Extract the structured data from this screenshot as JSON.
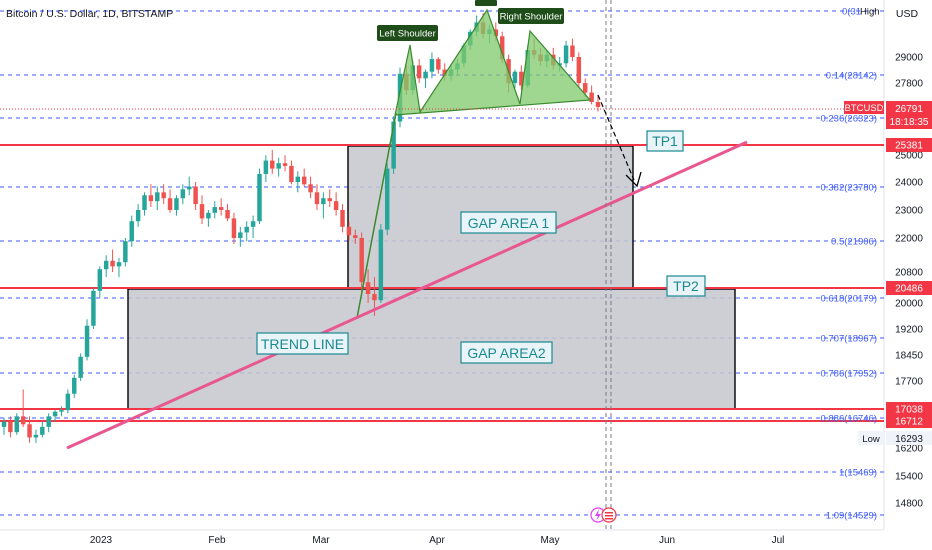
{
  "header": {
    "title": "Bitcoin / U.S. Dollar, 1D, BITSTAMP",
    "currency": "USD"
  },
  "colors": {
    "fib": "#3d5afe",
    "red_line": "#f23645",
    "trend": "#e8578f",
    "pattern_fill": "#7fc96b",
    "pattern_stroke": "#3a8a2e",
    "gap_fill": "#c6c7ce",
    "label_teal": "#1b8a91",
    "candle_up": "#26a69a",
    "candle_down": "#ef5350"
  },
  "chart_data": {
    "type": "candlestick",
    "symbol": "BTCUSD",
    "ylim": [
      14000,
      32000
    ],
    "price_axis_ticks": [
      {
        "value": 14800,
        "label": "14800"
      },
      {
        "value": 15400,
        "label": "15400"
      },
      {
        "value": 16200,
        "label": "16200"
      },
      {
        "value": 17700,
        "label": "17700"
      },
      {
        "value": 18450,
        "label": "18450"
      },
      {
        "value": 19200,
        "label": "19200"
      },
      {
        "value": 20000,
        "label": "20000"
      },
      {
        "value": 20800,
        "label": "20800"
      },
      {
        "value": 22000,
        "label": "22000"
      },
      {
        "value": 23000,
        "label": "23000"
      },
      {
        "value": 24000,
        "label": "24000"
      },
      {
        "value": 25000,
        "label": "25000"
      },
      {
        "value": 29000,
        "label": "29000"
      },
      {
        "value": 27800,
        "label": "27800"
      }
    ],
    "time_labels": [
      "2023",
      "Feb",
      "Mar",
      "Apr",
      "May",
      "Jun",
      "Jul"
    ],
    "fib_levels": [
      {
        "value": 31000,
        "label": "0(31",
        "extra": "High"
      },
      {
        "value": 28142,
        "label": "0.14(28142)"
      },
      {
        "value": 26323,
        "label": "0.236(26323)"
      },
      {
        "value": 23780,
        "label": "0.382(23780)"
      },
      {
        "value": 21906,
        "label": "0.5(21906)"
      },
      {
        "value": 20179,
        "label": "0.618(20179)"
      },
      {
        "value": 18967,
        "label": "0.707(18967)"
      },
      {
        "value": 17952,
        "label": "0.786(17952)"
      },
      {
        "value": 16746,
        "label": "0.886(16746)"
      },
      {
        "value": 15469,
        "label": "1(15469)"
      },
      {
        "value": 14529,
        "label": "1.09(14529)"
      }
    ],
    "horizontal_levels": [
      {
        "value": 25381,
        "label": "25381"
      },
      {
        "value": 20486,
        "label": "20486"
      },
      {
        "value": 17038,
        "label": "17038"
      },
      {
        "value": 16712,
        "label": "16712"
      }
    ],
    "current_price": {
      "symbol": "BTCUSD",
      "value": "26791",
      "countdown": "18:18:35"
    },
    "low_marker": {
      "label": "Low",
      "value": "16293"
    },
    "annotations": {
      "left_shoulder": "Left Shoulder",
      "right_shoulder": "Right Shoulder",
      "tp1": "TP1",
      "tp2": "TP2",
      "gap_area_1": "GAP AREA 1",
      "gap_area_2": "GAP AREA2",
      "trend_line": "TREND LINE"
    },
    "candles_ohlc_approx": [
      [
        16600,
        16750,
        16450,
        16700
      ],
      [
        16700,
        16800,
        16400,
        16500
      ],
      [
        16500,
        16900,
        16450,
        16800
      ],
      [
        16800,
        17500,
        16600,
        16650
      ],
      [
        16650,
        16800,
        16300,
        16400
      ],
      [
        16400,
        16550,
        16293,
        16450
      ],
      [
        16450,
        16700,
        16400,
        16600
      ],
      [
        16600,
        16900,
        16500,
        16800
      ],
      [
        16800,
        17000,
        16700,
        16950
      ],
      [
        16950,
        17100,
        16800,
        17000
      ],
      [
        17000,
        17500,
        16900,
        17400
      ],
      [
        17400,
        17900,
        17300,
        17800
      ],
      [
        17800,
        18500,
        17700,
        18400
      ],
      [
        18400,
        19500,
        18300,
        19300
      ],
      [
        19300,
        20500,
        19200,
        20400
      ],
      [
        20400,
        21000,
        20200,
        20900
      ],
      [
        20900,
        21400,
        20700,
        21200
      ],
      [
        21200,
        21600,
        20800,
        21000
      ],
      [
        21000,
        21300,
        20700,
        21150
      ],
      [
        21150,
        22000,
        21000,
        21900
      ],
      [
        21900,
        22800,
        21700,
        22600
      ],
      [
        22600,
        23200,
        22400,
        23000
      ],
      [
        23000,
        23600,
        22800,
        23500
      ],
      [
        23500,
        23900,
        23100,
        23300
      ],
      [
        23300,
        23800,
        23000,
        23600
      ],
      [
        23600,
        23900,
        23200,
        23400
      ],
      [
        23400,
        23700,
        22900,
        23000
      ],
      [
        23000,
        23500,
        22800,
        23400
      ],
      [
        23400,
        23900,
        23200,
        23700
      ],
      [
        23700,
        24200,
        23500,
        23800
      ],
      [
        23800,
        24000,
        23000,
        23200
      ],
      [
        23200,
        23500,
        22500,
        22700
      ],
      [
        22700,
        23000,
        22400,
        22900
      ],
      [
        22900,
        23300,
        22700,
        23100
      ],
      [
        23100,
        23400,
        22800,
        23000
      ],
      [
        23000,
        23200,
        22600,
        22700
      ],
      [
        22700,
        22900,
        21800,
        22000
      ],
      [
        22000,
        22400,
        21700,
        22200
      ],
      [
        22200,
        22600,
        21900,
        22400
      ],
      [
        22400,
        22800,
        22000,
        22600
      ],
      [
        22600,
        24500,
        22500,
        24300
      ],
      [
        24300,
        25000,
        24000,
        24800
      ],
      [
        24800,
        25200,
        24300,
        24500
      ],
      [
        24500,
        24900,
        24200,
        24700
      ],
      [
        24700,
        25000,
        24400,
        24600
      ],
      [
        24600,
        24800,
        23900,
        24000
      ],
      [
        24000,
        24400,
        23600,
        24200
      ],
      [
        24200,
        24500,
        23800,
        23900
      ],
      [
        23900,
        24200,
        23400,
        23600
      ],
      [
        23600,
        23900,
        23000,
        23200
      ],
      [
        23200,
        23600,
        22700,
        23400
      ],
      [
        23400,
        23700,
        23100,
        23300
      ],
      [
        23300,
        23600,
        22800,
        23000
      ],
      [
        23000,
        23200,
        22200,
        22400
      ],
      [
        22400,
        22600,
        21900,
        22100
      ],
      [
        22100,
        22300,
        21800,
        22000
      ],
      [
        22000,
        22200,
        20300,
        20600
      ],
      [
        20600,
        20900,
        20000,
        20300
      ],
      [
        20300,
        20700,
        19600,
        20100
      ],
      [
        20100,
        22500,
        20000,
        22300
      ],
      [
        22300,
        24700,
        22100,
        24500
      ],
      [
        24500,
        26400,
        24300,
        26200
      ],
      [
        26200,
        28500,
        26000,
        28200
      ],
      [
        28200,
        28600,
        27300,
        27500
      ],
      [
        27500,
        28800,
        27300,
        28600
      ],
      [
        28600,
        28900,
        27800,
        28000
      ],
      [
        28000,
        28400,
        27600,
        28300
      ],
      [
        28300,
        29200,
        28000,
        28900
      ],
      [
        28900,
        29000,
        28200,
        28400
      ],
      [
        28400,
        28700,
        27900,
        28100
      ],
      [
        28100,
        28600,
        27900,
        28400
      ],
      [
        28400,
        28900,
        28200,
        28700
      ],
      [
        28700,
        29600,
        28500,
        29500
      ],
      [
        29500,
        30200,
        29300,
        30100
      ],
      [
        30100,
        30800,
        29900,
        30500
      ],
      [
        30500,
        30900,
        29800,
        30000
      ],
      [
        30000,
        30400,
        29600,
        30200
      ],
      [
        30200,
        30500,
        29700,
        29900
      ],
      [
        29900,
        30100,
        28700,
        28900
      ],
      [
        28900,
        29100,
        27400,
        27800
      ],
      [
        27800,
        28400,
        27600,
        28300
      ],
      [
        28300,
        28600,
        27500,
        27700
      ],
      [
        27700,
        29500,
        27600,
        29300
      ],
      [
        29300,
        29800,
        28900,
        29100
      ],
      [
        29100,
        29400,
        28600,
        28800
      ],
      [
        28800,
        29300,
        28500,
        29100
      ],
      [
        29100,
        29400,
        28400,
        28600
      ],
      [
        28600,
        29000,
        28300,
        28700
      ],
      [
        28700,
        29700,
        28500,
        29500
      ],
      [
        29500,
        29800,
        28800,
        29000
      ],
      [
        29000,
        29200,
        27600,
        27800
      ],
      [
        27800,
        28000,
        27200,
        27400
      ],
      [
        27400,
        27700,
        26900,
        27000
      ],
      [
        27000,
        27300,
        26600,
        26791
      ]
    ]
  }
}
